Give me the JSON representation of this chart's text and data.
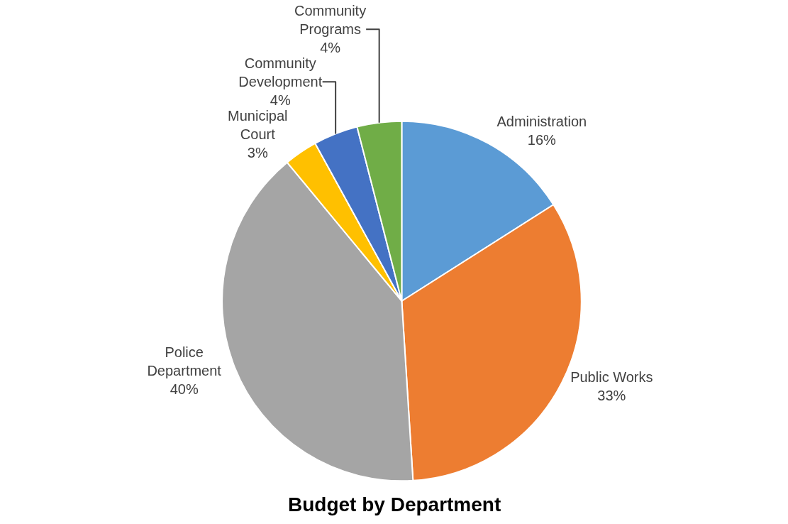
{
  "chart_data": {
    "type": "pie",
    "title": "Budget by Department",
    "categories": [
      "Administration",
      "Public Works",
      "Police Department",
      "Municipal Court",
      "Community Development",
      "Community Programs"
    ],
    "values": [
      16,
      33,
      40,
      3,
      4,
      4
    ],
    "value_labels": [
      "16%",
      "33%",
      "40%",
      "3%",
      "4%",
      "4%"
    ],
    "colors": [
      "#5b9bd5",
      "#ed7d31",
      "#a5a5a5",
      "#ffc000",
      "#4472c4",
      "#70ad47"
    ],
    "legend": false
  }
}
